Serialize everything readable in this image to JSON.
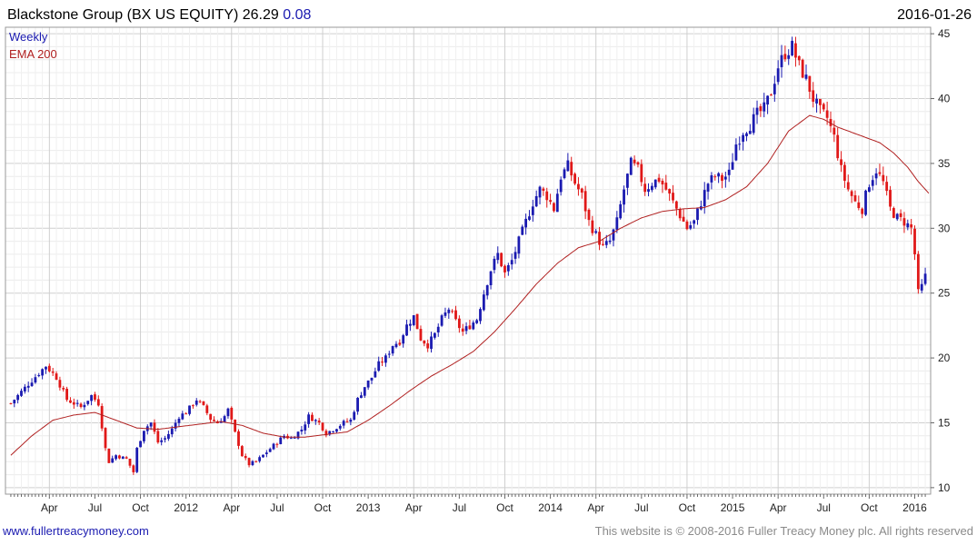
{
  "chart_data": {
    "type": "candlestick",
    "title": "Blackstone Group (BX US EQUITY) 26.29",
    "change": "0.08",
    "date": "2016-01-26",
    "legend": [
      {
        "label": "Weekly",
        "color": "#1a1ab0"
      },
      {
        "label": "EMA 200",
        "color": "#b02020"
      }
    ],
    "ylim": [
      9.5,
      45.5
    ],
    "y_ticks": [
      10,
      15,
      20,
      25,
      30,
      35,
      40,
      45
    ],
    "x_ticks": [
      "Apr",
      "Jul",
      "Oct",
      "2012",
      "Apr",
      "Jul",
      "Oct",
      "2013",
      "Apr",
      "Jul",
      "Oct",
      "2014",
      "Apr",
      "Jul",
      "Oct",
      "2015",
      "Apr",
      "Jul",
      "Oct",
      "2016"
    ],
    "x_tick_weeks": [
      11,
      24,
      37,
      50,
      63,
      76,
      89,
      102,
      115,
      128,
      141,
      154,
      167,
      180,
      193,
      206,
      219,
      232,
      245,
      258
    ],
    "weeks_total": 262,
    "anchors": [
      [
        0,
        16.5
      ],
      [
        5,
        18
      ],
      [
        10,
        19.4
      ],
      [
        13,
        18.5
      ],
      [
        16,
        16.8
      ],
      [
        20,
        16.2
      ],
      [
        23,
        17.1
      ],
      [
        25,
        16.5
      ],
      [
        27,
        13
      ],
      [
        28,
        12
      ],
      [
        30,
        12.5
      ],
      [
        33,
        12.2
      ],
      [
        35,
        11.2
      ],
      [
        36,
        13
      ],
      [
        38,
        14.5
      ],
      [
        40,
        15
      ],
      [
        42,
        13.5
      ],
      [
        44,
        13.8
      ],
      [
        46,
        14.5
      ],
      [
        48,
        15.5
      ],
      [
        50,
        15.8
      ],
      [
        53,
        16.8
      ],
      [
        55,
        16.2
      ],
      [
        57,
        15.3
      ],
      [
        59,
        15
      ],
      [
        61,
        15.5
      ],
      [
        62,
        16
      ],
      [
        64,
        14.2
      ],
      [
        66,
        12.5
      ],
      [
        68,
        11.8
      ],
      [
        70,
        12
      ],
      [
        72,
        12.5
      ],
      [
        74,
        13
      ],
      [
        76,
        13.5
      ],
      [
        78,
        14
      ],
      [
        80,
        13.8
      ],
      [
        83,
        14.5
      ],
      [
        85,
        15.5
      ],
      [
        88,
        15
      ],
      [
        90,
        14.2
      ],
      [
        92,
        14.5
      ],
      [
        95,
        15
      ],
      [
        97,
        15.2
      ],
      [
        99,
        16.8
      ],
      [
        101,
        17.8
      ],
      [
        103,
        18.5
      ],
      [
        105,
        19.5
      ],
      [
        107,
        20
      ],
      [
        109,
        21
      ],
      [
        111,
        21.3
      ],
      [
        113,
        22.5
      ],
      [
        115,
        23.2
      ],
      [
        117,
        21.5
      ],
      [
        119,
        21
      ],
      [
        121,
        21.8
      ],
      [
        123,
        23
      ],
      [
        125,
        23.8
      ],
      [
        127,
        22.8
      ],
      [
        129,
        22
      ],
      [
        131,
        22.5
      ],
      [
        133,
        23
      ],
      [
        135,
        25
      ],
      [
        137,
        26.8
      ],
      [
        139,
        28
      ],
      [
        141,
        26.5
      ],
      [
        143,
        27.5
      ],
      [
        145,
        29
      ],
      [
        147,
        30.5
      ],
      [
        149,
        32
      ],
      [
        151,
        33
      ],
      [
        153,
        32.5
      ],
      [
        155,
        31.5
      ],
      [
        157,
        34
      ],
      [
        159,
        34.8
      ],
      [
        161,
        33.5
      ],
      [
        163,
        32.5
      ],
      [
        165,
        30.5
      ],
      [
        167,
        29.5
      ],
      [
        169,
        28.5
      ],
      [
        171,
        29
      ],
      [
        173,
        30.5
      ],
      [
        175,
        33
      ],
      [
        177,
        35
      ],
      [
        179,
        34.5
      ],
      [
        181,
        33
      ],
      [
        183,
        33.5
      ],
      [
        185,
        33.8
      ],
      [
        187,
        33
      ],
      [
        189,
        32
      ],
      [
        191,
        31
      ],
      [
        193,
        30
      ],
      [
        195,
        30.5
      ],
      [
        197,
        32
      ],
      [
        199,
        33.5
      ],
      [
        201,
        34
      ],
      [
        203,
        33.8
      ],
      [
        205,
        34.2
      ],
      [
        207,
        36.5
      ],
      [
        209,
        37.5
      ],
      [
        211,
        38
      ],
      [
        213,
        38.8
      ],
      [
        215,
        39.2
      ],
      [
        217,
        40.5
      ],
      [
        219,
        42.5
      ],
      [
        221,
        43.5
      ],
      [
        223,
        44
      ],
      [
        225,
        42.5
      ],
      [
        227,
        41.5
      ],
      [
        229,
        40
      ],
      [
        231,
        39
      ],
      [
        233,
        38.5
      ],
      [
        235,
        37
      ],
      [
        237,
        34.5
      ],
      [
        239,
        33
      ],
      [
        241,
        32
      ],
      [
        243,
        31.5
      ],
      [
        245,
        33.5
      ],
      [
        247,
        34.5
      ],
      [
        249,
        33.5
      ],
      [
        251,
        31.5
      ],
      [
        253,
        30.8
      ],
      [
        255,
        30.5
      ],
      [
        257,
        30
      ],
      [
        258,
        28
      ],
      [
        259,
        25
      ],
      [
        260,
        25.5
      ],
      [
        261,
        26.29
      ]
    ],
    "ema_anchors": [
      [
        0,
        12.5
      ],
      [
        6,
        14
      ],
      [
        12,
        15.2
      ],
      [
        18,
        15.6
      ],
      [
        24,
        15.8
      ],
      [
        30,
        15.2
      ],
      [
        36,
        14.6
      ],
      [
        42,
        14.5
      ],
      [
        48,
        14.7
      ],
      [
        54,
        14.9
      ],
      [
        60,
        15.1
      ],
      [
        66,
        14.8
      ],
      [
        72,
        14.2
      ],
      [
        78,
        13.9
      ],
      [
        84,
        13.9
      ],
      [
        90,
        14.1
      ],
      [
        96,
        14.3
      ],
      [
        102,
        15.2
      ],
      [
        108,
        16.3
      ],
      [
        114,
        17.5
      ],
      [
        120,
        18.6
      ],
      [
        126,
        19.5
      ],
      [
        132,
        20.5
      ],
      [
        138,
        22
      ],
      [
        144,
        23.8
      ],
      [
        150,
        25.7
      ],
      [
        156,
        27.3
      ],
      [
        162,
        28.5
      ],
      [
        168,
        29
      ],
      [
        174,
        30
      ],
      [
        180,
        30.8
      ],
      [
        186,
        31.3
      ],
      [
        192,
        31.5
      ],
      [
        198,
        31.6
      ],
      [
        204,
        32.2
      ],
      [
        210,
        33.2
      ],
      [
        216,
        35
      ],
      [
        222,
        37.5
      ],
      [
        228,
        38.7
      ],
      [
        232,
        38.4
      ],
      [
        236,
        37.8
      ],
      [
        240,
        37.4
      ],
      [
        244,
        37
      ],
      [
        248,
        36.6
      ],
      [
        252,
        35.8
      ],
      [
        256,
        34.7
      ],
      [
        259,
        33.6
      ],
      [
        262,
        32.7
      ]
    ]
  },
  "footer": {
    "website": "www.fullertreacymoney.com",
    "copyright": "This website is © 2008-2016 Fuller Treacy Money plc. All rights reserved"
  }
}
